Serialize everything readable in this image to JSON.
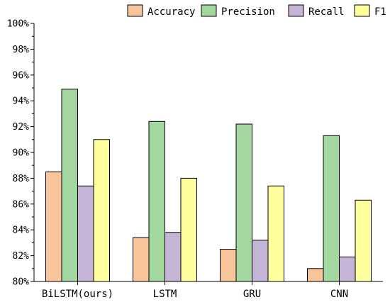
{
  "chart_data": {
    "type": "bar",
    "categories": [
      "BiLSTM(ours)",
      "LSTM",
      "GRU",
      "CNN"
    ],
    "series": [
      {
        "name": "Accuracy",
        "values": [
          88.5,
          83.4,
          82.5,
          81.0
        ],
        "color": "#f8c59b"
      },
      {
        "name": "Precision",
        "values": [
          94.9,
          92.4,
          92.2,
          91.3
        ],
        "color": "#a3d7a0"
      },
      {
        "name": "Recall",
        "values": [
          87.4,
          83.8,
          83.2,
          81.9
        ],
        "color": "#c4b4d6"
      },
      {
        "name": "F1",
        "values": [
          91.0,
          88.0,
          87.4,
          86.3
        ],
        "color": "#ffff9e"
      }
    ],
    "ylim": [
      80,
      100
    ],
    "yticks": [
      80,
      82,
      84,
      86,
      88,
      90,
      92,
      94,
      96,
      98,
      100
    ],
    "ytick_labels": [
      "80%",
      "82%",
      "84%",
      "86%",
      "88%",
      "90%",
      "92%",
      "94%",
      "96%",
      "98%",
      "100%"
    ],
    "title": "",
    "xlabel": "",
    "ylabel": "",
    "grid": false,
    "legend_position": "top"
  }
}
